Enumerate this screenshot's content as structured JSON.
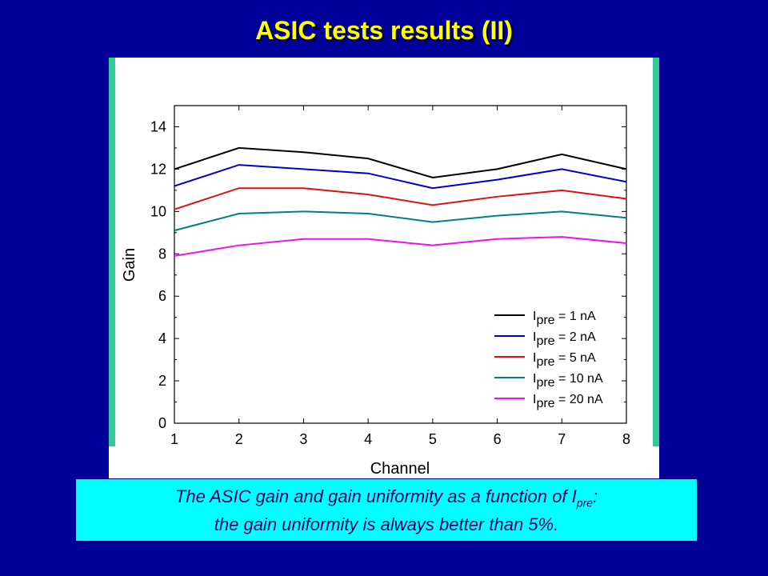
{
  "slide": {
    "title": "ASIC tests results (II)",
    "caption_line1_a": "The ASIC gain and gain uniformity as a function of  I",
    "caption_line1_sub": "pre",
    "caption_line1_b": ":",
    "caption_line2": "the gain uniformity is always better than 5%."
  },
  "colors": {
    "background": "#000099",
    "title": "#ffff00",
    "panel_strip": "#33cc99",
    "caption_box": "#00ffff"
  },
  "chart_data": {
    "type": "line",
    "title": "",
    "xlabel": "Channel",
    "ylabel": "Gain",
    "xlim": [
      1,
      8
    ],
    "ylim": [
      0,
      15
    ],
    "x": [
      1,
      2,
      3,
      4,
      5,
      6,
      7,
      8
    ],
    "xticks": [
      1,
      2,
      3,
      4,
      5,
      6,
      7,
      8
    ],
    "yticks": [
      0,
      2,
      4,
      6,
      8,
      10,
      12,
      14
    ],
    "grid": false,
    "legend_position": "bottom-right",
    "series": [
      {
        "name": "I",
        "name_sub": "pre",
        "name_rest": " = 1 nA",
        "color": "#000000",
        "values": [
          12.0,
          13.0,
          12.8,
          12.5,
          11.6,
          12.0,
          12.7,
          12.0
        ]
      },
      {
        "name": "I",
        "name_sub": "pre",
        "name_rest": " = 2 nA",
        "color": "#0000cc",
        "values": [
          11.2,
          12.2,
          12.0,
          11.8,
          11.1,
          11.5,
          12.0,
          11.4
        ]
      },
      {
        "name": "I",
        "name_sub": "pre",
        "name_rest": " = 5 nA",
        "color": "#dd1111",
        "values": [
          10.1,
          11.1,
          11.1,
          10.8,
          10.3,
          10.7,
          11.0,
          10.6
        ]
      },
      {
        "name": "I",
        "name_sub": "pre",
        "name_rest": " = 10 nA",
        "color": "#008080",
        "values": [
          9.1,
          9.9,
          10.0,
          9.9,
          9.5,
          9.8,
          10.0,
          9.7
        ]
      },
      {
        "name": "I",
        "name_sub": "pre",
        "name_rest": " = 20 nA",
        "color": "#ee11ee",
        "values": [
          7.9,
          8.4,
          8.7,
          8.7,
          8.4,
          8.7,
          8.8,
          8.5
        ]
      }
    ]
  }
}
